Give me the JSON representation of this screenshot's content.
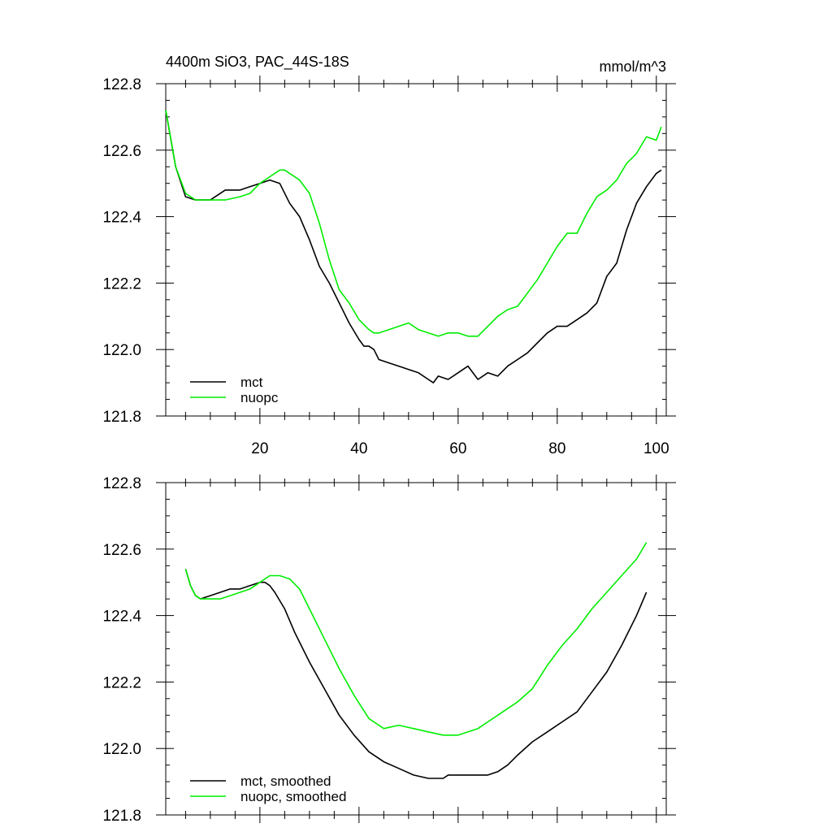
{
  "chart_data": [
    {
      "type": "line",
      "title_left": "4400m SiO3, PAC_44S-18S",
      "title_right": "mmol/m^3",
      "xlabel": "",
      "ylabel": "",
      "xlim": [
        1,
        102
      ],
      "ylim": [
        121.8,
        122.8
      ],
      "xticks": [
        20,
        40,
        60,
        80,
        100
      ],
      "xtick_labels": [
        "20",
        "40",
        "60",
        "80",
        "100"
      ],
      "yticks": [
        121.8,
        122.0,
        122.2,
        122.4,
        122.6,
        122.8
      ],
      "ytick_labels": [
        "121.8",
        "122.0",
        "122.2",
        "122.4",
        "122.6",
        "122.8"
      ],
      "legend_position": "bottom-left",
      "series": [
        {
          "name": "mct",
          "color": "#000000",
          "x": [
            1,
            3,
            5,
            7,
            10,
            13,
            16,
            18,
            20,
            22,
            24,
            26,
            28,
            30,
            32,
            34,
            36,
            38,
            40,
            41,
            42,
            43,
            44,
            46,
            48,
            50,
            52,
            54,
            55,
            56,
            58,
            60,
            62,
            64,
            66,
            68,
            70,
            72,
            74,
            76,
            78,
            80,
            82,
            84,
            86,
            88,
            90,
            92,
            94,
            96,
            98,
            100,
            101
          ],
          "values": [
            122.72,
            122.55,
            122.46,
            122.45,
            122.45,
            122.48,
            122.48,
            122.49,
            122.5,
            122.51,
            122.5,
            122.44,
            122.4,
            122.33,
            122.25,
            122.2,
            122.14,
            122.08,
            122.03,
            122.01,
            122.01,
            122.0,
            121.97,
            121.96,
            121.95,
            121.94,
            121.93,
            121.91,
            121.9,
            121.92,
            121.91,
            121.93,
            121.95,
            121.91,
            121.93,
            121.92,
            121.95,
            121.97,
            121.99,
            122.02,
            122.05,
            122.07,
            122.07,
            122.09,
            122.11,
            122.14,
            122.22,
            122.26,
            122.36,
            122.44,
            122.49,
            122.53,
            122.54
          ]
        },
        {
          "name": "nuopc",
          "color": "#00ee00",
          "x": [
            1,
            3,
            5,
            7,
            10,
            13,
            16,
            18,
            20,
            22,
            24,
            25,
            26,
            28,
            30,
            32,
            34,
            36,
            38,
            40,
            42,
            43,
            44,
            46,
            48,
            50,
            52,
            54,
            56,
            58,
            60,
            62,
            64,
            66,
            68,
            70,
            72,
            74,
            76,
            78,
            80,
            82,
            84,
            86,
            88,
            90,
            92,
            94,
            96,
            98,
            100,
            101
          ],
          "values": [
            122.72,
            122.55,
            122.47,
            122.45,
            122.45,
            122.45,
            122.46,
            122.47,
            122.5,
            122.52,
            122.54,
            122.54,
            122.53,
            122.51,
            122.47,
            122.38,
            122.27,
            122.18,
            122.14,
            122.09,
            122.06,
            122.05,
            122.05,
            122.06,
            122.07,
            122.08,
            122.06,
            122.05,
            122.04,
            122.05,
            122.05,
            122.04,
            122.04,
            122.07,
            122.1,
            122.12,
            122.13,
            122.17,
            122.21,
            122.26,
            122.31,
            122.35,
            122.35,
            122.41,
            122.46,
            122.48,
            122.51,
            122.56,
            122.59,
            122.64,
            122.63,
            122.67
          ]
        }
      ]
    },
    {
      "type": "line",
      "xlabel": "",
      "ylabel": "",
      "xlim": [
        1,
        102
      ],
      "ylim": [
        121.8,
        122.8
      ],
      "xticks": [
        20,
        40,
        60,
        80,
        100
      ],
      "yticks": [
        121.8,
        122.0,
        122.2,
        122.4,
        122.6,
        122.8
      ],
      "ytick_labels": [
        "121.8",
        "122.0",
        "122.2",
        "122.4",
        "122.6",
        "122.8"
      ],
      "legend_position": "bottom-left",
      "series": [
        {
          "name": "mct, smoothed",
          "color": "#000000",
          "x": [
            5,
            6,
            7,
            8,
            10,
            12,
            14,
            16,
            18,
            20,
            21,
            22,
            23,
            25,
            27,
            30,
            33,
            36,
            39,
            42,
            45,
            48,
            51,
            54,
            57,
            58,
            60,
            62,
            64,
            66,
            68,
            70,
            72,
            75,
            78,
            81,
            84,
            87,
            90,
            93,
            96,
            98
          ],
          "values": [
            122.54,
            122.49,
            122.46,
            122.45,
            122.46,
            122.47,
            122.48,
            122.48,
            122.49,
            122.5,
            122.5,
            122.49,
            122.47,
            122.42,
            122.35,
            122.26,
            122.18,
            122.1,
            122.04,
            121.99,
            121.96,
            121.94,
            121.92,
            121.91,
            121.91,
            121.92,
            121.92,
            121.92,
            121.92,
            121.92,
            121.93,
            121.95,
            121.98,
            122.02,
            122.05,
            122.08,
            122.11,
            122.17,
            122.23,
            122.31,
            122.4,
            122.47
          ]
        },
        {
          "name": "nuopc, smoothed",
          "color": "#00ee00",
          "x": [
            5,
            6,
            7,
            8,
            10,
            12,
            14,
            16,
            18,
            20,
            22,
            24,
            26,
            28,
            30,
            33,
            36,
            39,
            42,
            45,
            48,
            51,
            54,
            57,
            60,
            62,
            64,
            66,
            68,
            70,
            72,
            75,
            78,
            81,
            84,
            87,
            90,
            93,
            96,
            98
          ],
          "values": [
            122.54,
            122.49,
            122.46,
            122.45,
            122.45,
            122.45,
            122.46,
            122.47,
            122.48,
            122.5,
            122.52,
            122.52,
            122.51,
            122.48,
            122.42,
            122.33,
            122.24,
            122.16,
            122.09,
            122.06,
            122.07,
            122.06,
            122.05,
            122.04,
            122.04,
            122.05,
            122.06,
            122.08,
            122.1,
            122.12,
            122.14,
            122.18,
            122.25,
            122.31,
            122.36,
            122.42,
            122.47,
            122.52,
            122.57,
            122.62
          ]
        }
      ]
    }
  ]
}
